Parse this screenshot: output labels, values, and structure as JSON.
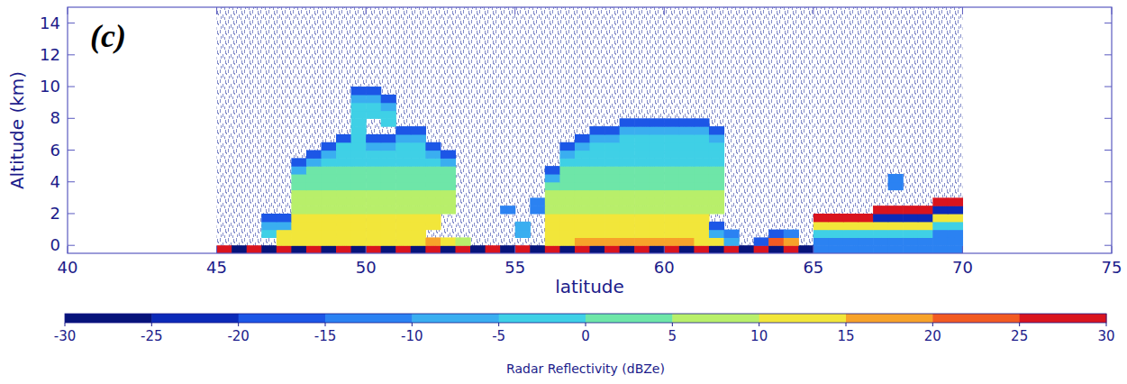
{
  "chart_data": {
    "type": "heatmap",
    "annotation": "(c)",
    "x_label": "latitude",
    "y_label": "Altitude (km)",
    "xlim": [
      40,
      75
    ],
    "xticks": [
      40,
      45,
      50,
      55,
      60,
      65,
      70,
      75
    ],
    "ylim": [
      -0.5,
      15
    ],
    "yticks": [
      0,
      2,
      4,
      6,
      8,
      10,
      12,
      14
    ],
    "x_bins": [
      45,
      45.5,
      46,
      46.5,
      47,
      47.5,
      48,
      48.5,
      49,
      49.5,
      50,
      50.5,
      51,
      51.5,
      52,
      52.5,
      53,
      53.5,
      54,
      54.5,
      55,
      55.5,
      56,
      56.5,
      57,
      57.5,
      58,
      58.5,
      59,
      59.5,
      60,
      60.5,
      61,
      61.5,
      62,
      62.5,
      63,
      63.5,
      64,
      64.5,
      65,
      65.5,
      66,
      66.5,
      67,
      67.5,
      68,
      68.5,
      69,
      69.5,
      70
    ],
    "y_bins": [
      -0.5,
      0,
      0.5,
      1,
      1.5,
      2,
      2.5,
      3,
      3.5,
      4,
      4.5,
      5,
      5.5,
      6,
      6.5,
      7,
      7.5,
      8,
      8.5,
      9,
      9.5,
      10
    ],
    "cells": [
      [
        25,
        -28,
        25,
        -28,
        25,
        -28,
        25,
        -28,
        25,
        -28,
        25,
        -28,
        25,
        -28,
        25,
        -28,
        25,
        -28,
        25,
        -28,
        25,
        -28,
        25,
        -28,
        25,
        -28,
        25,
        -28,
        25,
        -28,
        25,
        -28,
        25,
        -28,
        25,
        -28,
        25,
        -28,
        25,
        -28,
        -15,
        -15,
        -15,
        -15,
        -15,
        -15,
        -15,
        -15,
        -15,
        -15
      ],
      [
        null,
        null,
        null,
        null,
        10,
        10,
        10,
        10,
        10,
        10,
        10,
        10,
        10,
        10,
        15,
        10,
        5,
        null,
        null,
        null,
        null,
        null,
        10,
        10,
        15,
        15,
        15,
        15,
        15,
        15,
        15,
        15,
        10,
        10,
        -10,
        null,
        -20,
        20,
        15,
        null,
        -12,
        -12,
        -12,
        -12,
        -12,
        -12,
        -12,
        -12,
        -15,
        -15
      ],
      [
        null,
        null,
        null,
        -5,
        10,
        10,
        10,
        10,
        10,
        10,
        10,
        10,
        10,
        10,
        null,
        null,
        null,
        null,
        null,
        null,
        -10,
        null,
        10,
        10,
        10,
        10,
        10,
        10,
        10,
        10,
        10,
        10,
        10,
        -10,
        -15,
        null,
        null,
        -20,
        -15,
        null,
        -2,
        -2,
        -2,
        -2,
        -2,
        -2,
        -2,
        -2,
        -12,
        -12
      ],
      [
        null,
        null,
        null,
        -10,
        -10,
        10,
        10,
        10,
        10,
        10,
        10,
        10,
        10,
        10,
        10,
        null,
        null,
        null,
        null,
        null,
        -10,
        null,
        10,
        10,
        10,
        10,
        10,
        10,
        10,
        10,
        10,
        10,
        10,
        -18,
        null,
        null,
        null,
        null,
        null,
        null,
        12,
        12,
        12,
        12,
        12,
        12,
        12,
        12,
        -2,
        -2
      ],
      [
        null,
        null,
        null,
        -18,
        -18,
        10,
        10,
        10,
        10,
        10,
        10,
        10,
        10,
        10,
        10,
        null,
        null,
        null,
        null,
        null,
        null,
        null,
        10,
        10,
        10,
        10,
        10,
        10,
        10,
        10,
        10,
        10,
        10,
        null,
        null,
        null,
        null,
        null,
        null,
        null,
        25,
        25,
        25,
        25,
        -25,
        -25,
        -25,
        -25,
        12,
        12
      ],
      [
        null,
        null,
        null,
        null,
        null,
        5,
        5,
        5,
        5,
        5,
        5,
        5,
        5,
        5,
        5,
        5,
        null,
        null,
        null,
        -15,
        null,
        -15,
        5,
        5,
        5,
        5,
        5,
        5,
        5,
        5,
        5,
        5,
        5,
        5,
        null,
        null,
        null,
        null,
        null,
        null,
        null,
        null,
        null,
        null,
        25,
        25,
        25,
        25,
        -25,
        -25
      ],
      [
        null,
        null,
        null,
        null,
        null,
        5,
        5,
        5,
        5,
        5,
        5,
        5,
        5,
        5,
        5,
        5,
        null,
        null,
        null,
        null,
        null,
        -15,
        5,
        5,
        5,
        5,
        5,
        5,
        5,
        5,
        5,
        5,
        5,
        5,
        null,
        null,
        null,
        null,
        null,
        null,
        null,
        null,
        null,
        null,
        null,
        null,
        null,
        null,
        25,
        25
      ],
      [
        null,
        null,
        null,
        null,
        null,
        5,
        5,
        5,
        5,
        5,
        5,
        5,
        5,
        5,
        5,
        5,
        null,
        null,
        null,
        null,
        null,
        null,
        5,
        5,
        5,
        5,
        5,
        5,
        5,
        5,
        5,
        5,
        5,
        5,
        null,
        null,
        null,
        null,
        null,
        null,
        null,
        null,
        null,
        null,
        null,
        null,
        null,
        null,
        null,
        null
      ],
      [
        null,
        null,
        null,
        null,
        null,
        0,
        0,
        0,
        0,
        0,
        0,
        0,
        0,
        0,
        0,
        0,
        null,
        null,
        null,
        null,
        null,
        null,
        0,
        0,
        0,
        0,
        0,
        0,
        0,
        0,
        0,
        0,
        0,
        0,
        null,
        null,
        null,
        null,
        null,
        null,
        null,
        null,
        null,
        null,
        null,
        -15,
        null,
        null,
        null,
        null
      ],
      [
        null,
        null,
        null,
        null,
        null,
        0,
        0,
        0,
        0,
        0,
        0,
        0,
        0,
        0,
        0,
        0,
        null,
        null,
        null,
        null,
        null,
        null,
        -10,
        0,
        0,
        0,
        0,
        0,
        0,
        0,
        0,
        0,
        0,
        0,
        null,
        null,
        null,
        null,
        null,
        null,
        null,
        null,
        null,
        null,
        null,
        -15,
        null,
        null,
        null,
        null
      ],
      [
        null,
        null,
        null,
        null,
        null,
        -10,
        0,
        0,
        0,
        0,
        0,
        0,
        0,
        0,
        0,
        0,
        null,
        null,
        null,
        null,
        null,
        null,
        -18,
        0,
        0,
        0,
        0,
        0,
        0,
        0,
        0,
        0,
        0,
        0,
        null,
        null,
        null,
        null,
        null,
        null,
        null,
        null,
        null,
        null,
        null,
        null,
        null,
        null,
        null,
        null
      ],
      [
        null,
        null,
        null,
        null,
        null,
        -18,
        -10,
        -5,
        -5,
        -5,
        -5,
        -5,
        -5,
        -5,
        -5,
        -10,
        null,
        null,
        null,
        null,
        null,
        null,
        null,
        -5,
        -5,
        -5,
        -5,
        -5,
        -5,
        -5,
        -5,
        -5,
        -5,
        -5,
        null,
        null,
        null,
        null,
        null,
        null,
        null,
        null,
        null,
        null,
        null,
        null,
        null,
        null,
        null,
        null
      ],
      [
        null,
        null,
        null,
        null,
        null,
        null,
        -18,
        -10,
        -5,
        -5,
        -5,
        -5,
        -5,
        -5,
        -10,
        -18,
        null,
        null,
        null,
        null,
        null,
        null,
        null,
        -10,
        -5,
        -5,
        -5,
        -5,
        -5,
        -5,
        -5,
        -5,
        -5,
        -5,
        null,
        null,
        null,
        null,
        null,
        null,
        null,
        null,
        null,
        null,
        null,
        null,
        null,
        null,
        null,
        null
      ],
      [
        null,
        null,
        null,
        null,
        null,
        null,
        null,
        -18,
        -5,
        -5,
        -10,
        -10,
        -5,
        -5,
        -18,
        null,
        null,
        null,
        null,
        null,
        null,
        null,
        null,
        -18,
        -10,
        -5,
        -5,
        -5,
        -5,
        -5,
        -5,
        -5,
        -5,
        -5,
        null,
        null,
        null,
        null,
        null,
        null,
        null,
        null,
        null,
        null,
        null,
        null,
        null,
        null,
        null,
        null
      ],
      [
        null,
        null,
        null,
        null,
        null,
        null,
        null,
        null,
        -18,
        -5,
        -18,
        -18,
        -10,
        -10,
        null,
        null,
        null,
        null,
        null,
        null,
        null,
        null,
        null,
        null,
        -18,
        -10,
        -10,
        -5,
        -5,
        -5,
        -5,
        -5,
        -5,
        -10,
        null,
        null,
        null,
        null,
        null,
        null,
        null,
        null,
        null,
        null,
        null,
        null,
        null,
        null,
        null,
        null
      ],
      [
        null,
        null,
        null,
        null,
        null,
        null,
        null,
        null,
        null,
        -5,
        null,
        null,
        -18,
        -18,
        null,
        null,
        null,
        null,
        null,
        null,
        null,
        null,
        null,
        null,
        null,
        -18,
        -18,
        -10,
        -10,
        -10,
        -10,
        -10,
        -10,
        -18,
        null,
        null,
        null,
        null,
        null,
        null,
        null,
        null,
        null,
        null,
        null,
        null,
        null,
        null,
        null,
        null
      ],
      [
        null,
        null,
        null,
        null,
        null,
        null,
        null,
        null,
        null,
        -5,
        null,
        -5,
        null,
        null,
        null,
        null,
        null,
        null,
        null,
        null,
        null,
        null,
        null,
        null,
        null,
        null,
        null,
        -18,
        -18,
        -18,
        -18,
        -18,
        -18,
        null,
        null,
        null,
        null,
        null,
        null,
        null,
        null,
        null,
        null,
        null,
        null,
        null,
        null,
        null,
        null,
        null
      ],
      [
        null,
        null,
        null,
        null,
        null,
        null,
        null,
        null,
        null,
        -5,
        -5,
        -5,
        null,
        null,
        null,
        null,
        null,
        null,
        null,
        null,
        null,
        null,
        null,
        null,
        null,
        null,
        null,
        null,
        null,
        null,
        null,
        null,
        null,
        null,
        null,
        null,
        null,
        null,
        null,
        null,
        null,
        null,
        null,
        null,
        null,
        null,
        null,
        null,
        null,
        null
      ],
      [
        null,
        null,
        null,
        null,
        null,
        null,
        null,
        null,
        null,
        -5,
        -5,
        -10,
        null,
        null,
        null,
        null,
        null,
        null,
        null,
        null,
        null,
        null,
        null,
        null,
        null,
        null,
        null,
        null,
        null,
        null,
        null,
        null,
        null,
        null,
        null,
        null,
        null,
        null,
        null,
        null,
        null,
        null,
        null,
        null,
        null,
        null,
        null,
        null,
        null,
        null
      ],
      [
        null,
        null,
        null,
        null,
        null,
        null,
        null,
        null,
        null,
        -10,
        -10,
        -18,
        null,
        null,
        null,
        null,
        null,
        null,
        null,
        null,
        null,
        null,
        null,
        null,
        null,
        null,
        null,
        null,
        null,
        null,
        null,
        null,
        null,
        null,
        null,
        null,
        null,
        null,
        null,
        null,
        null,
        null,
        null,
        null,
        null,
        null,
        null,
        null,
        null,
        null
      ],
      [
        null,
        null,
        null,
        null,
        null,
        null,
        null,
        null,
        null,
        -18,
        -18,
        null,
        null,
        null,
        null,
        null,
        null,
        null,
        null,
        null,
        null,
        null,
        null,
        null,
        null,
        null,
        null,
        null,
        null,
        null,
        null,
        null,
        null,
        null,
        null,
        null,
        null,
        null,
        null,
        null,
        null,
        null,
        null,
        null,
        null,
        null,
        null,
        null,
        null,
        null
      ]
    ],
    "colorbar": {
      "range": [
        -30,
        30
      ],
      "ticks": [
        -30,
        -25,
        -20,
        -15,
        -10,
        -5,
        0,
        5,
        10,
        15,
        20,
        25,
        30
      ],
      "label": "Radar Reflectivity (dBZe)",
      "colors": [
        "#06137a",
        "#0b2ab8",
        "#1c56e6",
        "#2b82f2",
        "#3aaef0",
        "#3fd0e6",
        "#6ee6a8",
        "#b8ef6a",
        "#f2e63a",
        "#f7a22a",
        "#f25a22",
        "#d9141e"
      ]
    }
  }
}
